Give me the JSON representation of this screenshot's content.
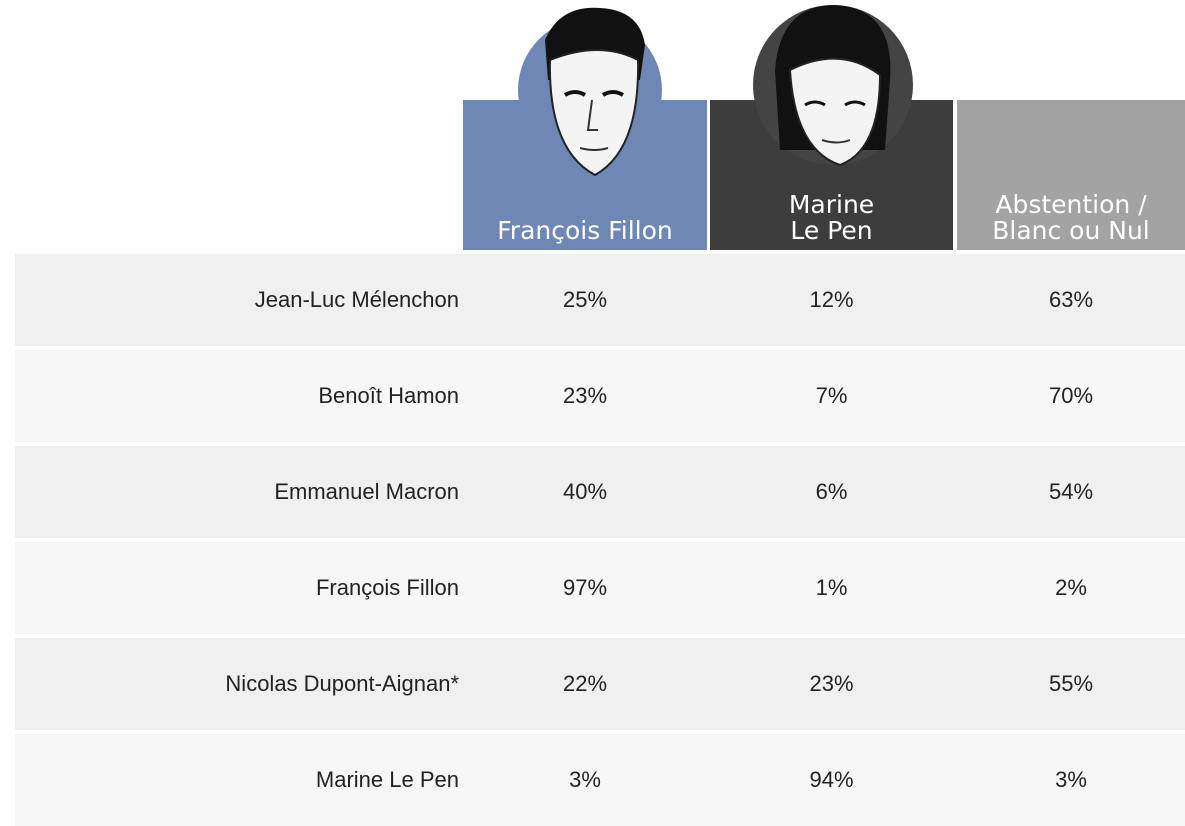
{
  "table": {
    "columns": [
      {
        "lines": [
          "François Fillon"
        ]
      },
      {
        "lines": [
          "Marine",
          "Le Pen"
        ]
      },
      {
        "lines": [
          "Abstention /",
          "Blanc ou Nul"
        ]
      }
    ],
    "rows": [
      {
        "label": "Jean-Luc Mélenchon",
        "values": [
          "25%",
          "12%",
          "63%"
        ]
      },
      {
        "label": "Benoît Hamon",
        "values": [
          "23%",
          "7%",
          "70%"
        ]
      },
      {
        "label": "Emmanuel Macron",
        "values": [
          "40%",
          "6%",
          "54%"
        ]
      },
      {
        "label": "François Fillon",
        "values": [
          "97%",
          "1%",
          "2%"
        ]
      },
      {
        "label": "Nicolas Dupont-Aignan*",
        "values": [
          "22%",
          "23%",
          "55%"
        ]
      },
      {
        "label": "Marine Le Pen",
        "values": [
          "3%",
          "94%",
          "3%"
        ]
      }
    ]
  }
}
